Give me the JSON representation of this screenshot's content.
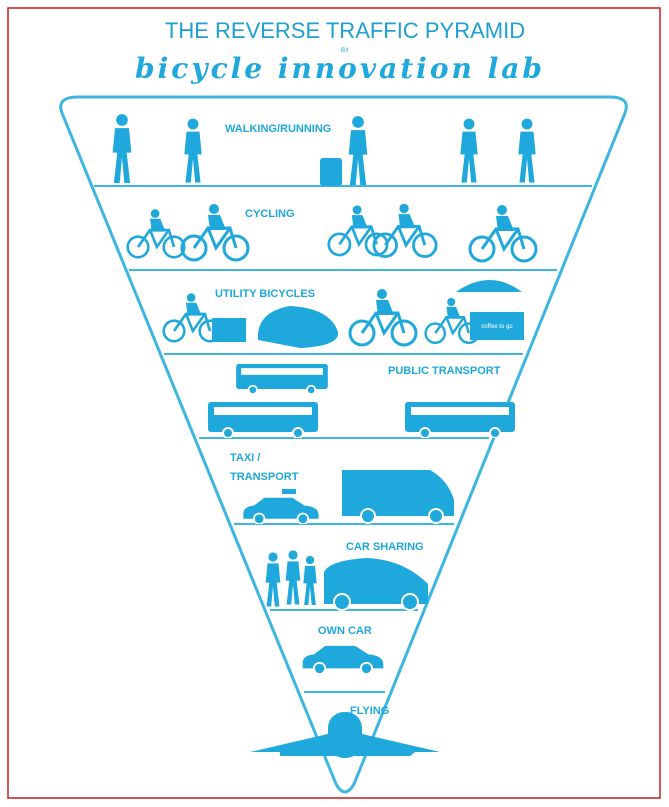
{
  "header": {
    "title": "THE REVERSE TRAFFIC PYRAMID",
    "by": "BY",
    "brand": "bicycle innovation lab"
  },
  "layers": [
    {
      "lines": [
        "WALKING/RUNNING"
      ]
    },
    {
      "lines": [
        "CYCLING"
      ]
    },
    {
      "lines": [
        "UTILITY BICYCLES"
      ],
      "cart_text": "coffee to go"
    },
    {
      "lines": [
        "PUBLIC TRANSPORT"
      ]
    },
    {
      "lines": [
        "TAXI /",
        "TRANSPORT"
      ]
    },
    {
      "lines": [
        "CAR SHARING"
      ]
    },
    {
      "lines": [
        "OWN CAR"
      ]
    },
    {
      "lines": [
        "FLYING"
      ]
    }
  ]
}
